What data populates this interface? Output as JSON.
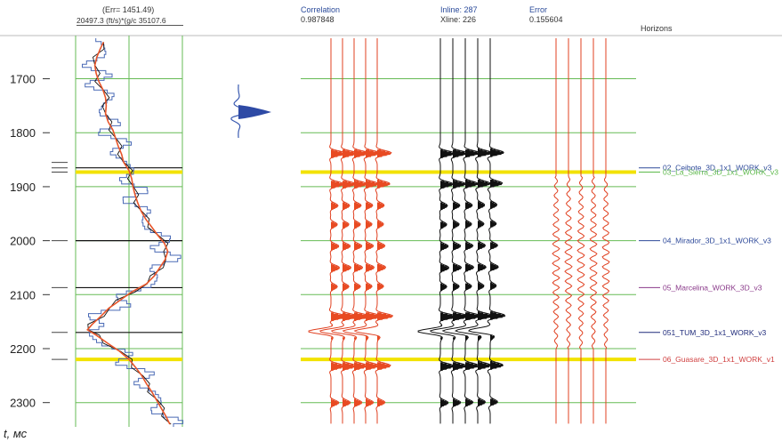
{
  "header": {
    "log_err": "(Err= 1451.49)",
    "log_scale": "20497.3  (ft/s)*(g/c  35107.6",
    "corr_label": "Correlation",
    "corr_value": "0.987848",
    "inline_label": "Inline: 287",
    "xline_label": "Xline: 226",
    "error_label": "Error",
    "error_value": "0.155604",
    "horizons_title": "Horizons"
  },
  "axis_label": "t, мс",
  "chart_data": {
    "type": "line",
    "ylabel": "t, мс",
    "ylim": [
      1620,
      2345
    ],
    "yticks": [
      1700,
      1800,
      1900,
      2000,
      2100,
      2200,
      2300
    ],
    "grid": true,
    "tracks": [
      "impedance log",
      "synthetic (Correlation 0.987848)",
      "seismic (Inline 287, Xline 226)",
      "error (0.155604)"
    ],
    "horizons": [
      {
        "name": "02_Ceibote_3D_1x1_WORK_v3",
        "t": 1865,
        "color": "#2e4a9a",
        "marker": "black"
      },
      {
        "name": "03_La_Sierra_3D_1x1_WORK_v3",
        "t": 1873,
        "color": "#5db94a",
        "marker": "yellow"
      },
      {
        "name": "04_Mirador_3D_1x1_WORK_v3",
        "t": 2000,
        "color": "#2e4a9a",
        "marker": "black"
      },
      {
        "name": "05_Marcelina_WORK_3D_v3",
        "t": 2087,
        "color": "#8a3a8a",
        "marker": "black"
      },
      {
        "name": "051_TUM_3D_1x1_WORK_v3",
        "t": 2170,
        "color": "#1e2a7a",
        "marker": "black"
      },
      {
        "name": "06_Guasare_3D_1x1_WORK_v1",
        "t": 2220,
        "color": "#d04040",
        "marker": "yellow"
      }
    ],
    "minor_horizons": [
      1855
    ],
    "series": [
      {
        "t": [
          1632,
          1645,
          1660,
          1675,
          1690,
          1705,
          1720,
          1735,
          1750,
          1765,
          1780,
          1795,
          1810,
          1825,
          1840,
          1855,
          1870,
          1885,
          1900,
          1915,
          1930,
          1945,
          1960,
          1975,
          1990,
          2005,
          2020,
          2035,
          2050,
          2065,
          2080,
          2095,
          2110,
          2125,
          2140,
          2155,
          2165,
          2175,
          2190,
          2205,
          2220,
          2235,
          2250,
          2265,
          2280,
          2295,
          2310,
          2325,
          2340
        ],
        "values": [
          24000,
          23500,
          23000,
          22700,
          22900,
          23300,
          23900,
          24300,
          24400,
          24300,
          24700,
          25400,
          25800,
          26200,
          26700,
          27000,
          27800,
          28200,
          28400,
          28700,
          29100,
          29600,
          30300,
          31200,
          32100,
          33100,
          33600,
          33200,
          32400,
          31600,
          30400,
          28200,
          26500,
          24800,
          23600,
          22300,
          21600,
          22900,
          24600,
          26400,
          27800,
          28800,
          29700,
          30400,
          31200,
          31900,
          32600,
          33300,
          33900
        ]
      }
    ]
  }
}
